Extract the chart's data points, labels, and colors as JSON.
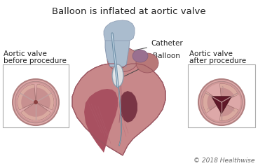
{
  "title": "Balloon is inflated at aortic valve",
  "title_fontsize": 9.5,
  "title_color": "#222222",
  "bg_color": "#ffffff",
  "copyright": "© 2018 Healthwise",
  "copyright_fontsize": 6.5,
  "copyright_color": "#666666",
  "label_catheter": "Catheter",
  "label_balloon": "Balloon",
  "label_left_title1": "Aortic valve",
  "label_left_title2": "before procedure",
  "label_right_title1": "Aortic valve",
  "label_right_title2": "after procedure",
  "annotation_color": "#222222",
  "annotation_fontsize": 7.5,
  "side_title_fontsize": 7.5,
  "heart_outer": "#c8888a",
  "heart_inner": "#b87070",
  "heart_muscle_dark": "#a85560",
  "heart_edge": "#9a5560",
  "atria_color": "#c08888",
  "aorta_fill": "#aabcce",
  "aorta_edge": "#8898b0",
  "lv_color": "#a85060",
  "rv_color": "#7a3545",
  "valve_bg_color": "#dba0a0",
  "valve_ring_color": "#c09090",
  "valve_leaflet": "#cc9898",
  "valve_leaflet_edge": "#a07878",
  "valve_center_before": "#9a5050",
  "valve_center_after": "#5a1520",
  "balloon_fill": "#e0e8ec",
  "balloon_edge": "#8899aa",
  "catheter_color": "#8899aa",
  "box_edge": "#aaaaaa",
  "box_face": "#ffffff"
}
